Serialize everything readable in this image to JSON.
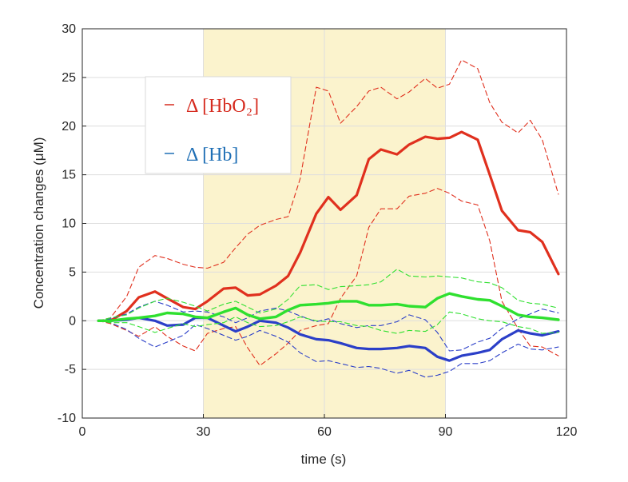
{
  "chart_data": {
    "type": "line",
    "xlabel": "time (s)",
    "ylabel": "Concentration changes (μM)",
    "xlim": [
      0,
      120
    ],
    "ylim": [
      -10,
      30
    ],
    "xticks": [
      0,
      30,
      60,
      90,
      120
    ],
    "yticks": [
      -10,
      -5,
      0,
      5,
      10,
      15,
      20,
      25,
      30
    ],
    "grid": true,
    "shaded_region": {
      "x": [
        30,
        90
      ],
      "color": "#fbf3cd"
    },
    "legend": {
      "placement": "upper-left",
      "entries": [
        {
          "label": "Δ [HbO₂]",
          "color": "#d62b1f"
        },
        {
          "label": "Δ [Hb]",
          "color": "#1f6fb5"
        }
      ]
    },
    "x": [
      4,
      7,
      11,
      14,
      18,
      21,
      25,
      28,
      31,
      35,
      38,
      41,
      44,
      48,
      51,
      54,
      58,
      61,
      64,
      68,
      71,
      74,
      78,
      81,
      85,
      88,
      91,
      94,
      98,
      101,
      104,
      108,
      111,
      114,
      118
    ],
    "series": [
      {
        "color": "#e0301e",
        "width": 3.2,
        "dash": "",
        "values": [
          0,
          0,
          1,
          2.4,
          3.0,
          2.3,
          1.4,
          1.2,
          2.0,
          3.3,
          3.4,
          2.6,
          2.7,
          3.6,
          4.6,
          7.0,
          11.0,
          12.7,
          11.4,
          12.9,
          16.6,
          17.6,
          17.1,
          18.1,
          18.9,
          18.7,
          18.8,
          19.4,
          18.6,
          15.0,
          11.3,
          9.3,
          9.1,
          8.1,
          4.8
        ]
      },
      {
        "color": "#e0301e",
        "width": 1.1,
        "dash": "6,4",
        "values": [
          0,
          0.3,
          2.5,
          5.5,
          6.7,
          6.4,
          5.8,
          5.5,
          5.4,
          6.0,
          7.5,
          8.9,
          9.8,
          10.4,
          10.7,
          14.6,
          24.0,
          23.6,
          20.3,
          22.0,
          23.6,
          24.0,
          22.8,
          23.5,
          24.9,
          23.9,
          24.3,
          26.8,
          25.9,
          22.4,
          20.4,
          19.3,
          20.6,
          18.6,
          13.0
        ]
      },
      {
        "color": "#e0301e",
        "width": 1.1,
        "dash": "6,4",
        "values": [
          0,
          -0.3,
          -1.0,
          -1.6,
          -0.6,
          -1.6,
          -2.6,
          -3.1,
          -1.3,
          -0.8,
          -0.6,
          -2.8,
          -4.6,
          -3.4,
          -2.3,
          -1.0,
          -0.5,
          -0.3,
          2.3,
          4.6,
          9.6,
          11.5,
          11.5,
          12.8,
          13.1,
          13.6,
          13.1,
          12.3,
          11.9,
          8.2,
          2.0,
          -0.8,
          -2.6,
          -2.7,
          -3.6
        ]
      },
      {
        "color": "#2b3fc8",
        "width": 3.2,
        "dash": "",
        "values": [
          0,
          0,
          0.1,
          0.3,
          0,
          -0.5,
          -0.4,
          0.3,
          0.3,
          -0.5,
          -1.1,
          -0.6,
          0,
          -0.2,
          -0.7,
          -1.4,
          -1.9,
          -2.0,
          -2.3,
          -2.8,
          -2.9,
          -2.9,
          -2.8,
          -2.6,
          -2.8,
          -3.7,
          -4.1,
          -3.6,
          -3.3,
          -3.0,
          -1.9,
          -1.0,
          -1.3,
          -1.5,
          -1.1
        ]
      },
      {
        "color": "#2b3fc8",
        "width": 1.1,
        "dash": "6,4",
        "values": [
          0,
          0.2,
          0.7,
          1.4,
          2.0,
          1.6,
          0.9,
          1.0,
          0.9,
          0.4,
          -0.2,
          0.3,
          1.0,
          1.3,
          1.0,
          0.5,
          -0.1,
          0.2,
          -0.3,
          -0.7,
          -0.5,
          -0.5,
          -0.1,
          0.6,
          0.1,
          -1.2,
          -3.1,
          -3.0,
          -2.2,
          -1.8,
          -0.8,
          0.2,
          0.7,
          1.2,
          0.8
        ]
      },
      {
        "color": "#2b3fc8",
        "width": 1.1,
        "dash": "6,4",
        "values": [
          0,
          -0.2,
          -0.9,
          -1.8,
          -2.7,
          -2.2,
          -1.5,
          -0.4,
          -0.8,
          -1.5,
          -2.0,
          -1.6,
          -1.0,
          -1.6,
          -2.2,
          -3.3,
          -4.2,
          -4.1,
          -4.4,
          -4.8,
          -4.7,
          -4.9,
          -5.4,
          -5.1,
          -5.8,
          -5.6,
          -5.2,
          -4.4,
          -4.4,
          -4.1,
          -3.3,
          -2.4,
          -2.9,
          -3.0,
          -2.7
        ]
      },
      {
        "color": "#2fe02f",
        "width": 3.4,
        "dash": "",
        "values": [
          0,
          0,
          0.2,
          0.3,
          0.5,
          0.8,
          0.7,
          0.4,
          0.3,
          0.9,
          1.3,
          0.6,
          0.2,
          0.4,
          1.1,
          1.6,
          1.7,
          1.8,
          2.0,
          2.0,
          1.6,
          1.6,
          1.7,
          1.5,
          1.4,
          2.3,
          2.8,
          2.5,
          2.2,
          2.1,
          1.5,
          0.6,
          0.4,
          0.3,
          0.1
        ]
      },
      {
        "color": "#2fe02f",
        "width": 1.1,
        "dash": "6,4",
        "values": [
          0,
          0.3,
          0.6,
          1.3,
          2.0,
          2.3,
          1.9,
          1.5,
          1.0,
          1.7,
          2.0,
          1.4,
          0.8,
          1.2,
          2.2,
          3.6,
          3.7,
          3.2,
          3.5,
          3.6,
          3.7,
          4.0,
          5.3,
          4.6,
          4.5,
          4.6,
          4.5,
          4.4,
          4.0,
          3.9,
          3.4,
          2.1,
          1.8,
          1.7,
          1.3
        ]
      },
      {
        "color": "#2fe02f",
        "width": 1.1,
        "dash": "6,4",
        "values": [
          0,
          -0.2,
          -0.2,
          -0.6,
          -1.2,
          -0.8,
          -0.3,
          -0.6,
          -0.4,
          -0.2,
          0.4,
          -0.2,
          -0.6,
          -0.5,
          -0.1,
          0.4,
          0,
          -0.1,
          -0.1,
          -0.5,
          -0.6,
          -1.0,
          -1.3,
          -1.0,
          -1.1,
          -0.4,
          0.9,
          0.7,
          0.2,
          0.0,
          -0.1,
          -0.6,
          -0.8,
          -1.3,
          -1.2
        ]
      }
    ]
  }
}
